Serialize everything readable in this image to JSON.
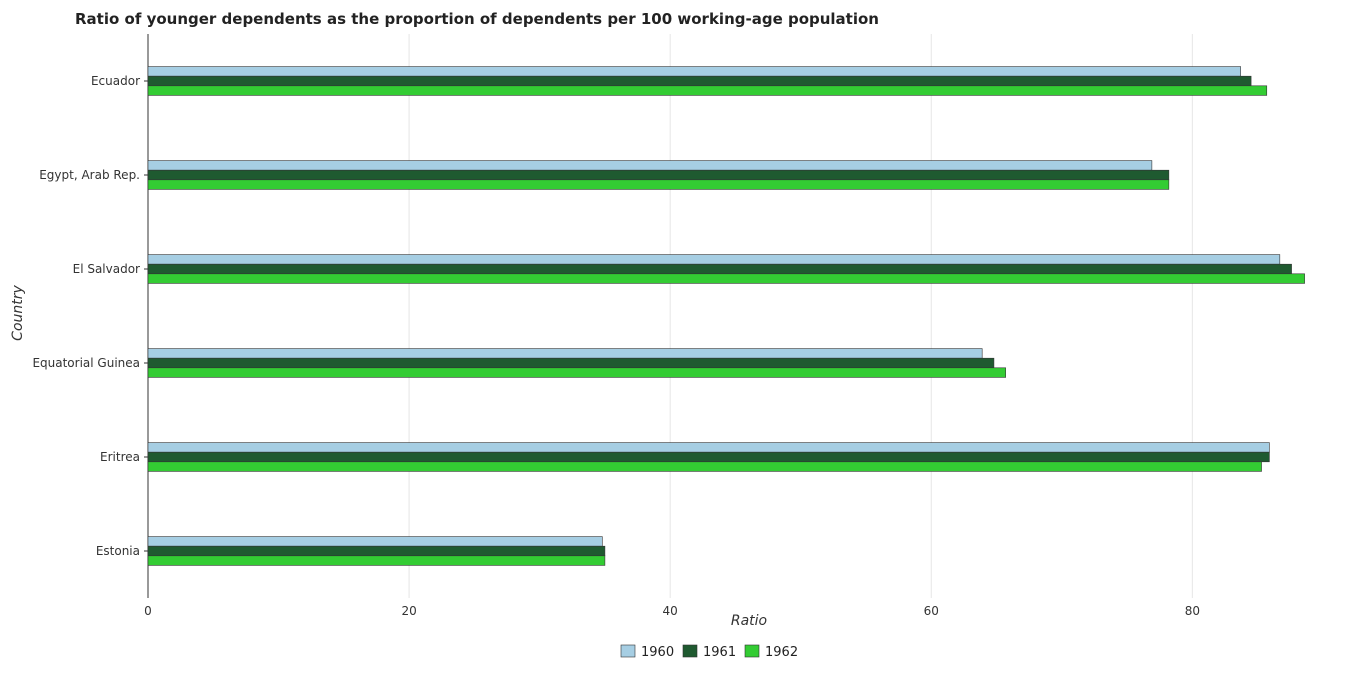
{
  "chart_data": {
    "type": "bar",
    "orientation": "horizontal",
    "title": "Ratio of younger dependents as the proportion of dependents per 100 working-age population",
    "xlabel": "Ratio",
    "ylabel": "Country",
    "xlim": [
      0,
      92
    ],
    "xticks": [
      0,
      20,
      40,
      60,
      80
    ],
    "grid": true,
    "legend_position": "bottom-center",
    "categories": [
      "Ecuador",
      "Egypt, Arab Rep.",
      "El Salvador",
      "Equatorial Guinea",
      "Eritrea",
      "Estonia"
    ],
    "series": [
      {
        "name": "1960",
        "color": "#a6cee3",
        "values": [
          83.7,
          76.9,
          86.7,
          63.9,
          85.9,
          34.8
        ]
      },
      {
        "name": "1961",
        "color": "#1f5a30",
        "values": [
          84.5,
          78.2,
          87.6,
          64.8,
          85.9,
          35.0
        ]
      },
      {
        "name": "1962",
        "color": "#33cc33",
        "values": [
          85.7,
          78.2,
          88.6,
          65.7,
          85.3,
          35.0
        ]
      }
    ]
  }
}
